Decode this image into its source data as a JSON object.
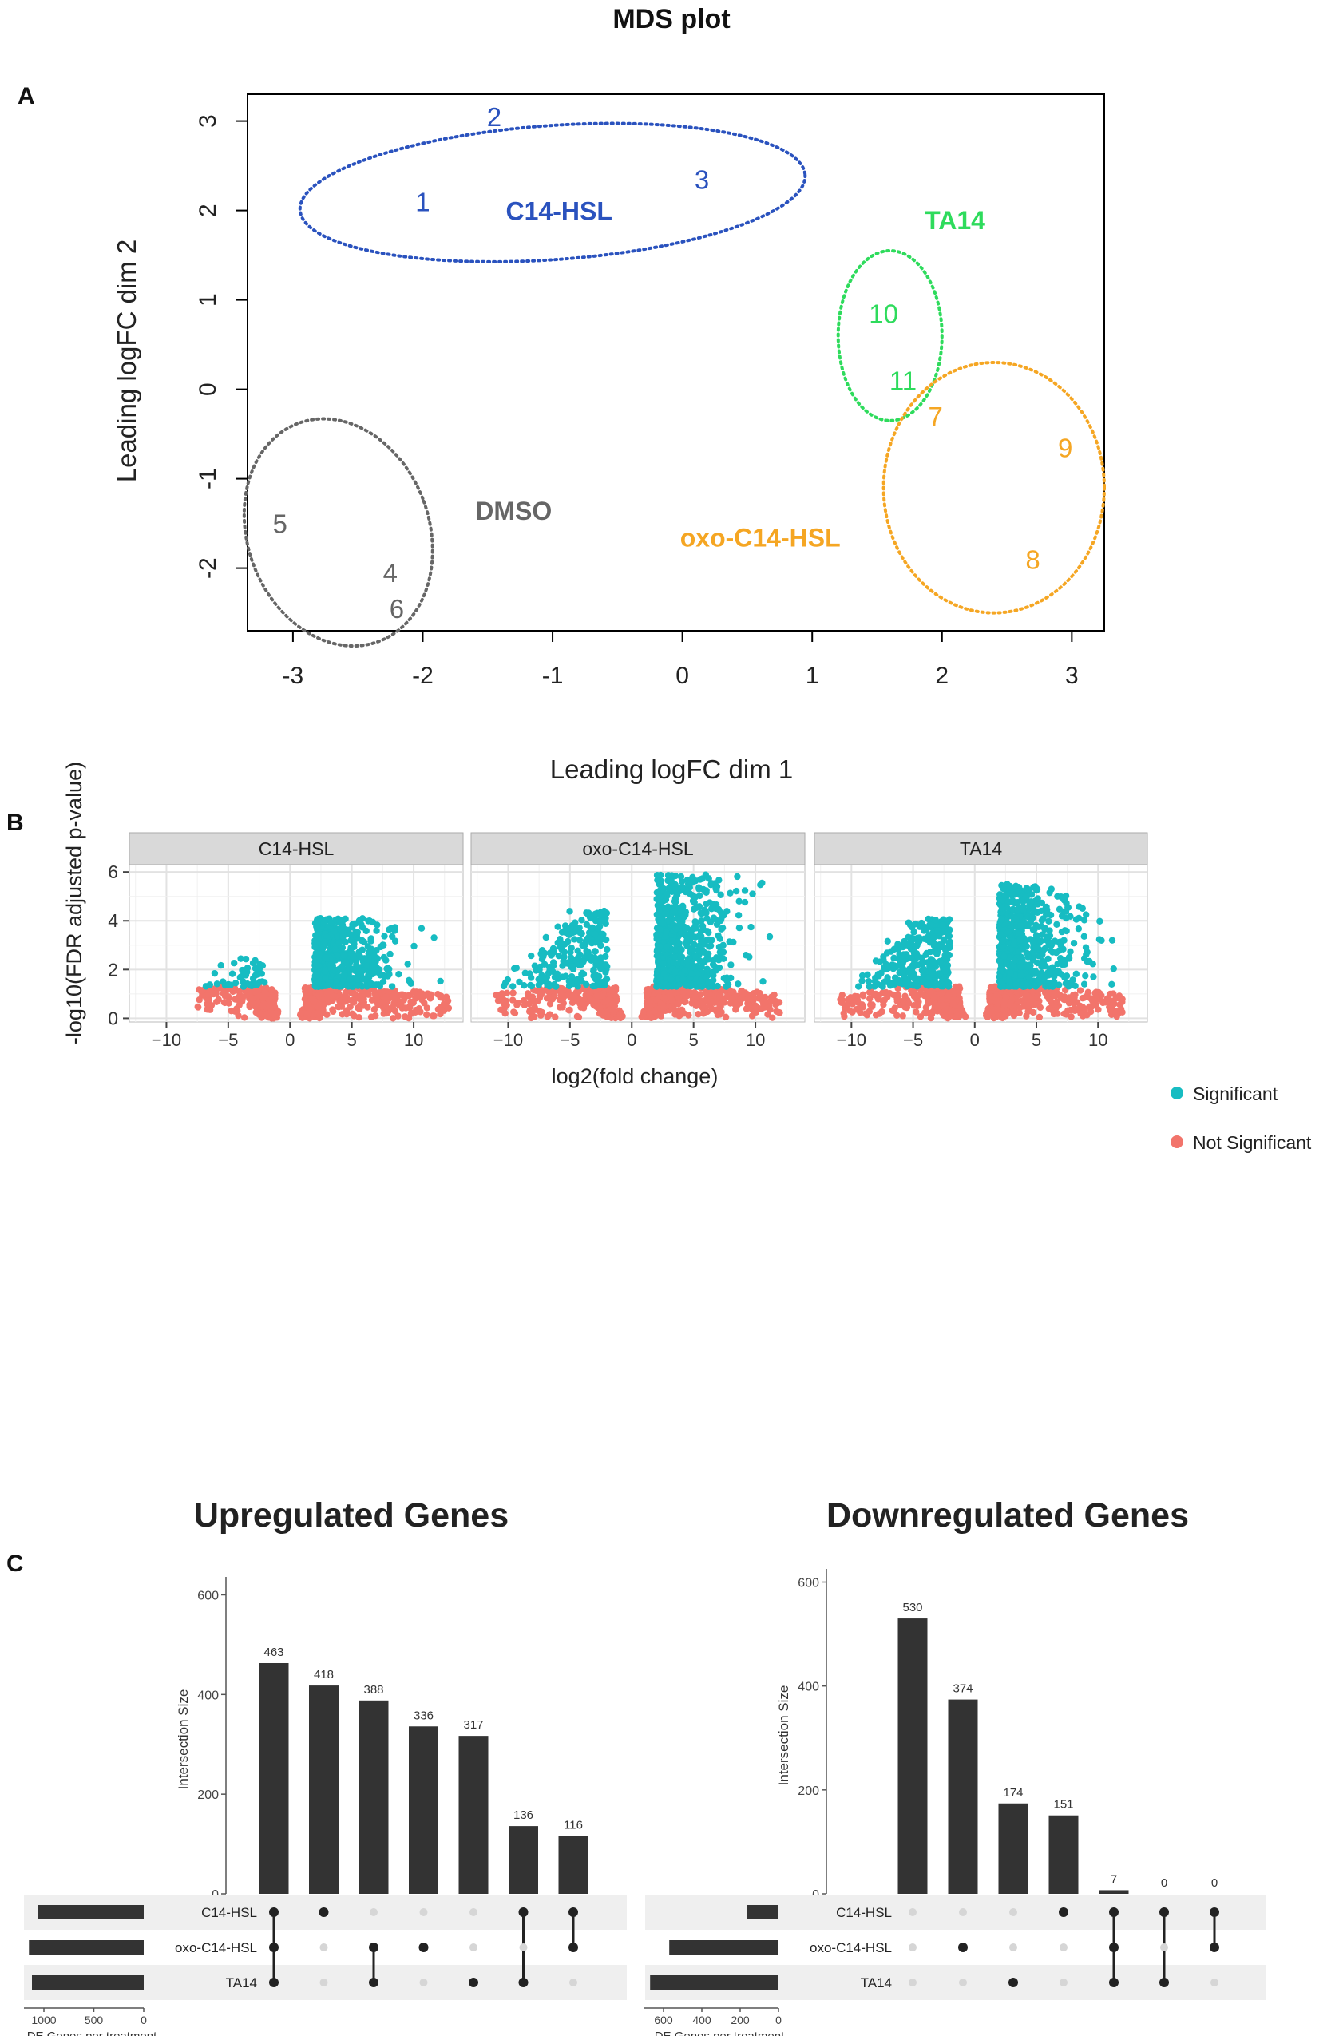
{
  "panel_labels": {
    "a": "A",
    "b": "B",
    "c": "C"
  },
  "chart_data": [
    {
      "id": "mds",
      "type": "scatter",
      "title": "MDS plot",
      "xlabel": "Leading logFC dim 1",
      "ylabel": "Leading logFC dim 2",
      "xlim": [
        -3.35,
        3.25
      ],
      "ylim": [
        -2.7,
        3.3
      ],
      "xticks": [
        -3,
        -2,
        -1,
        0,
        1,
        2,
        3
      ],
      "yticks": [
        -2,
        -1,
        0,
        1,
        2,
        3
      ],
      "points": [
        {
          "label": "1",
          "x": -2.0,
          "y": 2.1,
          "group": "C14-HSL"
        },
        {
          "label": "2",
          "x": -1.45,
          "y": 3.05,
          "group": "C14-HSL"
        },
        {
          "label": "3",
          "x": 0.15,
          "y": 2.35,
          "group": "C14-HSL"
        },
        {
          "label": "4",
          "x": -2.25,
          "y": -2.05,
          "group": "DMSO"
        },
        {
          "label": "5",
          "x": -3.1,
          "y": -1.5,
          "group": "DMSO"
        },
        {
          "label": "6",
          "x": -2.2,
          "y": -2.45,
          "group": "DMSO"
        },
        {
          "label": "7",
          "x": 1.95,
          "y": -0.3,
          "group": "oxo-C14-HSL"
        },
        {
          "label": "8",
          "x": 2.7,
          "y": -1.9,
          "group": "oxo-C14-HSL"
        },
        {
          "label": "9",
          "x": 2.95,
          "y": -0.65,
          "group": "oxo-C14-HSL"
        },
        {
          "label": "10",
          "x": 1.55,
          "y": 0.85,
          "group": "TA14"
        },
        {
          "label": "11",
          "x": 1.7,
          "y": 0.1,
          "group": "TA14"
        }
      ],
      "groups": [
        {
          "name": "C14-HSL",
          "color": "#2a52be",
          "label_x": -0.95,
          "label_y": 2.0,
          "ellipse": {
            "cx": -1.0,
            "cy": 2.2,
            "rx": 1.95,
            "ry": 0.75
          }
        },
        {
          "name": "TA14",
          "color": "#2edb5c",
          "label_x": 2.1,
          "label_y": 1.9,
          "ellipse": {
            "cx": 1.6,
            "cy": 0.6,
            "rx": 0.4,
            "ry": 0.95
          }
        },
        {
          "name": "oxo-C14-HSL",
          "color": "#f5a623",
          "label_x": 0.6,
          "label_y": -1.65,
          "ellipse": {
            "cx": 2.4,
            "cy": -1.1,
            "rx": 0.85,
            "ry": 1.4
          }
        },
        {
          "name": "DMSO",
          "color": "#666666",
          "label_x": -1.3,
          "label_y": -1.35,
          "ellipse": {
            "cx": -2.65,
            "cy": -1.6,
            "rx": 0.7,
            "ry": 1.3
          }
        }
      ]
    },
    {
      "id": "volcano",
      "type": "scatter",
      "xlabel": "log2(fold change)",
      "ylabel": "-log10(FDR adjusted p-value)",
      "xlim": [
        -13,
        14
      ],
      "ylim": [
        -0.15,
        6.3
      ],
      "xticks": [
        -10,
        -5,
        0,
        5,
        10
      ],
      "yticks": [
        0,
        2,
        4,
        6
      ],
      "threshold": 1.3,
      "legend": [
        {
          "label": "Significant",
          "color": "#17bcc2"
        },
        {
          "label": "Not Significant",
          "color": "#f2746b"
        }
      ],
      "facets": [
        {
          "name": "C14-HSL",
          "neg_max": 2.5,
          "pos_max": 4.1,
          "neg_extent": 7.5,
          "pos_extent": 13,
          "sig_neg": 45,
          "sig_pos": 560,
          "ns": 420
        },
        {
          "name": "oxo-C14-HSL",
          "neg_max": 4.4,
          "pos_max": 5.9,
          "neg_extent": 11,
          "pos_extent": 12,
          "sig_neg": 230,
          "sig_pos": 620,
          "ns": 480
        },
        {
          "name": "TA14",
          "neg_max": 4.1,
          "pos_max": 5.5,
          "neg_extent": 11,
          "pos_extent": 12,
          "sig_neg": 300,
          "sig_pos": 620,
          "ns": 460
        }
      ]
    },
    {
      "id": "upset-up",
      "type": "bar",
      "title": "Upregulated Genes",
      "ylabel": "Intersection Size",
      "set_axis_label": "DE Genes per treatment",
      "ylim": [
        0,
        620
      ],
      "yticks": [
        0,
        200,
        400,
        600
      ],
      "set_ticks": [
        1000,
        500,
        0
      ],
      "set_max": 1200,
      "values": [
        463,
        418,
        388,
        336,
        317,
        136,
        116
      ],
      "sets": [
        "C14-HSL",
        "oxo-C14-HSL",
        "TA14"
      ],
      "set_sizes": [
        1060,
        1150,
        1120
      ],
      "memberships": [
        [
          0,
          1,
          2
        ],
        [
          0
        ],
        [
          1,
          2
        ],
        [
          1
        ],
        [
          2
        ],
        [
          0,
          2
        ],
        [
          0,
          1
        ]
      ]
    },
    {
      "id": "upset-down",
      "type": "bar",
      "title": "Downregulated Genes",
      "ylabel": "Intersection Size",
      "set_axis_label": "DE Genes per treatment",
      "ylim": [
        0,
        610
      ],
      "yticks": [
        0,
        200,
        400,
        600
      ],
      "set_ticks": [
        600,
        400,
        200,
        0
      ],
      "set_max": 700,
      "values": [
        530,
        374,
        174,
        151,
        7,
        0,
        0
      ],
      "sets": [
        "C14-HSL",
        "oxo-C14-HSL",
        "TA14"
      ],
      "set_sizes": [
        165,
        570,
        670
      ],
      "memberships": [
        [],
        [
          1
        ],
        [
          2
        ],
        [
          0
        ],
        [
          0,
          1,
          2
        ],
        [
          0,
          2
        ],
        [
          0,
          1
        ]
      ]
    }
  ]
}
